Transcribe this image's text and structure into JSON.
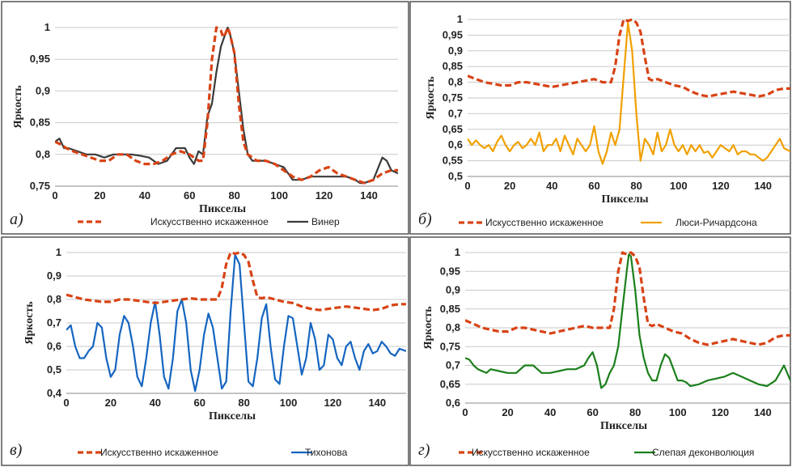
{
  "chart_data": [
    {
      "type": "line",
      "panel_label": "а)",
      "xlabel": "Пикселы",
      "ylabel": "Яркость",
      "xlim": [
        0,
        153
      ],
      "ylim": [
        0.75,
        1
      ],
      "xticks": [
        0,
        20,
        40,
        60,
        80,
        100,
        120,
        140
      ],
      "yticks": [
        "0,75",
        "0,8",
        "0,85",
        "0,9",
        "0,95",
        "1"
      ],
      "ytick_values": [
        0.75,
        0.8,
        0.85,
        0.9,
        0.95,
        1
      ],
      "legend_position": "bottom",
      "series": [
        {
          "name": "Искусственно искаженное",
          "color": "#d84315",
          "dashed": true,
          "x": [
            0,
            3,
            5,
            8,
            12,
            16,
            20,
            24,
            28,
            32,
            36,
            40,
            44,
            48,
            52,
            56,
            60,
            64,
            66,
            68,
            70,
            72,
            74,
            75,
            76,
            77,
            78,
            80,
            82,
            84,
            86,
            88,
            90,
            94,
            98,
            102,
            106,
            110,
            114,
            118,
            122,
            126,
            130,
            134,
            138,
            142,
            146,
            150,
            153
          ],
          "y": [
            0.82,
            0.815,
            0.81,
            0.805,
            0.8,
            0.795,
            0.79,
            0.79,
            0.8,
            0.8,
            0.79,
            0.785,
            0.785,
            0.79,
            0.8,
            0.805,
            0.8,
            0.79,
            0.79,
            0.85,
            0.95,
            1,
            0.995,
            0.985,
            0.99,
            1,
            0.99,
            0.96,
            0.88,
            0.82,
            0.8,
            0.795,
            0.79,
            0.79,
            0.785,
            0.775,
            0.765,
            0.76,
            0.765,
            0.775,
            0.78,
            0.77,
            0.765,
            0.76,
            0.755,
            0.76,
            0.77,
            0.775,
            0.775
          ]
        },
        {
          "name": "Винер",
          "color": "#3a3a3a",
          "dashed": false,
          "x": [
            0,
            2,
            4,
            6,
            10,
            14,
            18,
            22,
            26,
            30,
            34,
            38,
            42,
            46,
            50,
            54,
            58,
            60,
            62,
            64,
            66,
            68,
            70,
            72,
            74,
            76,
            77,
            78,
            80,
            82,
            84,
            86,
            88,
            90,
            94,
            98,
            102,
            104,
            106,
            110,
            114,
            118,
            122,
            126,
            130,
            134,
            136,
            138,
            142,
            146,
            148,
            150,
            153
          ],
          "y": [
            0.82,
            0.825,
            0.81,
            0.81,
            0.805,
            0.8,
            0.8,
            0.795,
            0.8,
            0.8,
            0.8,
            0.798,
            0.795,
            0.785,
            0.79,
            0.81,
            0.81,
            0.795,
            0.785,
            0.805,
            0.8,
            0.86,
            0.88,
            0.93,
            0.97,
            0.99,
            1,
            0.99,
            0.96,
            0.9,
            0.84,
            0.8,
            0.79,
            0.79,
            0.79,
            0.785,
            0.78,
            0.77,
            0.76,
            0.76,
            0.765,
            0.765,
            0.765,
            0.765,
            0.765,
            0.76,
            0.755,
            0.755,
            0.76,
            0.795,
            0.79,
            0.775,
            0.77
          ]
        }
      ]
    },
    {
      "type": "line",
      "panel_label": "б)",
      "xlabel": "Пикселы",
      "ylabel": "Яркость",
      "xlim": [
        0,
        153
      ],
      "ylim": [
        0.5,
        1
      ],
      "xticks": [
        0,
        20,
        40,
        60,
        80,
        100,
        120,
        140
      ],
      "yticks": [
        "0,5",
        "0,55",
        "0,6",
        "0,65",
        "0,7",
        "0,75",
        "0,8",
        "0,85",
        "0,9",
        "0,95",
        "1"
      ],
      "ytick_values": [
        0.5,
        0.55,
        0.6,
        0.65,
        0.7,
        0.75,
        0.8,
        0.85,
        0.9,
        0.95,
        1
      ],
      "legend_position": "bottom",
      "series": [
        {
          "name": "Искусственно искаженное",
          "color": "#d84315",
          "dashed": true,
          "x": [
            0,
            4,
            8,
            12,
            16,
            20,
            24,
            28,
            32,
            36,
            40,
            44,
            48,
            52,
            56,
            60,
            64,
            68,
            70,
            72,
            74,
            76,
            78,
            80,
            82,
            84,
            86,
            88,
            90,
            94,
            98,
            102,
            106,
            110,
            114,
            118,
            122,
            126,
            130,
            134,
            138,
            142,
            146,
            150,
            153
          ],
          "y": [
            0.82,
            0.81,
            0.8,
            0.795,
            0.79,
            0.79,
            0.8,
            0.8,
            0.795,
            0.79,
            0.785,
            0.79,
            0.795,
            0.8,
            0.805,
            0.81,
            0.8,
            0.8,
            0.85,
            0.95,
            1,
            0.995,
            1,
            0.99,
            0.96,
            0.88,
            0.81,
            0.805,
            0.81,
            0.8,
            0.79,
            0.785,
            0.77,
            0.76,
            0.755,
            0.76,
            0.765,
            0.77,
            0.765,
            0.76,
            0.755,
            0.76,
            0.775,
            0.78,
            0.78
          ]
        },
        {
          "name": "Люси-Ричардсона",
          "color": "#f0a000",
          "dashed": false,
          "x": [
            0,
            2,
            4,
            6,
            8,
            10,
            12,
            14,
            16,
            18,
            20,
            22,
            24,
            26,
            28,
            30,
            32,
            34,
            36,
            38,
            40,
            42,
            44,
            46,
            48,
            50,
            52,
            54,
            56,
            58,
            60,
            62,
            64,
            66,
            68,
            70,
            72,
            74,
            76,
            78,
            80,
            82,
            84,
            86,
            88,
            90,
            92,
            94,
            96,
            98,
            100,
            102,
            104,
            106,
            108,
            110,
            112,
            114,
            116,
            118,
            120,
            122,
            124,
            126,
            128,
            130,
            132,
            134,
            136,
            138,
            140,
            142,
            144,
            146,
            148,
            150,
            153
          ],
          "y": [
            0.62,
            0.6,
            0.615,
            0.6,
            0.59,
            0.6,
            0.58,
            0.61,
            0.63,
            0.6,
            0.58,
            0.6,
            0.61,
            0.59,
            0.6,
            0.62,
            0.6,
            0.64,
            0.58,
            0.6,
            0.6,
            0.62,
            0.58,
            0.63,
            0.6,
            0.57,
            0.62,
            0.6,
            0.58,
            0.6,
            0.66,
            0.58,
            0.54,
            0.58,
            0.64,
            0.6,
            0.65,
            0.82,
            0.99,
            0.9,
            0.7,
            0.55,
            0.62,
            0.6,
            0.57,
            0.64,
            0.58,
            0.6,
            0.65,
            0.6,
            0.58,
            0.6,
            0.57,
            0.6,
            0.58,
            0.6,
            0.575,
            0.58,
            0.56,
            0.58,
            0.6,
            0.59,
            0.58,
            0.6,
            0.57,
            0.58,
            0.58,
            0.57,
            0.57,
            0.56,
            0.55,
            0.56,
            0.58,
            0.6,
            0.62,
            0.59,
            0.58
          ]
        }
      ]
    },
    {
      "type": "line",
      "panel_label": "в)",
      "xlabel": "Пикселы",
      "ylabel": "Яркость",
      "xlim": [
        0,
        153
      ],
      "ylim": [
        0.4,
        1
      ],
      "xticks": [
        0,
        20,
        40,
        60,
        80,
        100,
        120,
        140
      ],
      "yticks": [
        "0,4",
        "0,5",
        "0,6",
        "0,7",
        "0,8",
        "0,9",
        "1"
      ],
      "ytick_values": [
        0.4,
        0.5,
        0.6,
        0.7,
        0.8,
        0.9,
        1
      ],
      "legend_position": "bottom",
      "series": [
        {
          "name": "Искусственно искаженное",
          "color": "#d84315",
          "dashed": true,
          "x": [
            0,
            4,
            8,
            12,
            16,
            20,
            24,
            28,
            32,
            36,
            40,
            44,
            48,
            52,
            56,
            60,
            64,
            68,
            70,
            72,
            74,
            76,
            78,
            80,
            82,
            84,
            86,
            88,
            90,
            94,
            98,
            102,
            106,
            110,
            114,
            118,
            122,
            126,
            130,
            134,
            138,
            142,
            146,
            150,
            153
          ],
          "y": [
            0.82,
            0.81,
            0.8,
            0.795,
            0.79,
            0.79,
            0.8,
            0.8,
            0.795,
            0.79,
            0.785,
            0.79,
            0.795,
            0.8,
            0.805,
            0.8,
            0.8,
            0.8,
            0.85,
            0.95,
            1,
            0.995,
            1,
            0.99,
            0.96,
            0.88,
            0.81,
            0.805,
            0.81,
            0.8,
            0.79,
            0.785,
            0.77,
            0.76,
            0.755,
            0.76,
            0.765,
            0.77,
            0.765,
            0.76,
            0.755,
            0.76,
            0.775,
            0.78,
            0.78
          ]
        },
        {
          "name": "Тихонова",
          "color": "#1565c0",
          "dashed": false,
          "x": [
            0,
            2,
            4,
            6,
            8,
            10,
            12,
            14,
            16,
            18,
            20,
            22,
            24,
            26,
            28,
            30,
            32,
            34,
            36,
            38,
            40,
            42,
            44,
            46,
            48,
            50,
            52,
            54,
            56,
            58,
            60,
            62,
            64,
            66,
            68,
            70,
            72,
            74,
            76,
            78,
            80,
            82,
            84,
            86,
            88,
            90,
            92,
            94,
            96,
            98,
            100,
            102,
            104,
            106,
            108,
            110,
            112,
            114,
            116,
            118,
            120,
            122,
            124,
            126,
            128,
            130,
            132,
            134,
            136,
            138,
            140,
            142,
            144,
            146,
            148,
            150,
            153
          ],
          "y": [
            0.67,
            0.69,
            0.6,
            0.55,
            0.55,
            0.58,
            0.6,
            0.7,
            0.68,
            0.55,
            0.47,
            0.5,
            0.65,
            0.73,
            0.7,
            0.6,
            0.47,
            0.43,
            0.55,
            0.7,
            0.79,
            0.65,
            0.47,
            0.42,
            0.55,
            0.75,
            0.8,
            0.7,
            0.5,
            0.41,
            0.5,
            0.65,
            0.74,
            0.68,
            0.55,
            0.42,
            0.45,
            0.75,
            0.99,
            0.95,
            0.7,
            0.45,
            0.43,
            0.55,
            0.72,
            0.78,
            0.6,
            0.46,
            0.44,
            0.6,
            0.73,
            0.72,
            0.6,
            0.48,
            0.55,
            0.7,
            0.63,
            0.5,
            0.52,
            0.65,
            0.63,
            0.55,
            0.52,
            0.6,
            0.62,
            0.55,
            0.5,
            0.58,
            0.61,
            0.57,
            0.58,
            0.62,
            0.6,
            0.57,
            0.56,
            0.59,
            0.58
          ]
        }
      ]
    },
    {
      "type": "line",
      "panel_label": "г)",
      "xlabel": "Пикселы",
      "ylabel": "Яркость",
      "xlim": [
        0,
        153
      ],
      "ylim": [
        0.6,
        1
      ],
      "xticks": [
        0,
        20,
        40,
        60,
        80,
        100,
        120,
        140
      ],
      "yticks": [
        "0,6",
        "0,65",
        "0,7",
        "0,75",
        "0,8",
        "0,85",
        "0,9",
        "0,95",
        "1"
      ],
      "ytick_values": [
        0.6,
        0.65,
        0.7,
        0.75,
        0.8,
        0.85,
        0.9,
        0.95,
        1
      ],
      "legend_position": "bottom",
      "series": [
        {
          "name": "Искусственно искаженное",
          "color": "#d84315",
          "dashed": true,
          "x": [
            0,
            4,
            8,
            12,
            16,
            20,
            24,
            28,
            32,
            36,
            40,
            44,
            48,
            52,
            56,
            60,
            64,
            68,
            70,
            72,
            74,
            76,
            78,
            80,
            82,
            84,
            86,
            88,
            90,
            94,
            98,
            102,
            106,
            110,
            114,
            118,
            122,
            126,
            130,
            134,
            138,
            142,
            146,
            150,
            153
          ],
          "y": [
            0.82,
            0.81,
            0.8,
            0.795,
            0.79,
            0.79,
            0.8,
            0.8,
            0.795,
            0.79,
            0.785,
            0.79,
            0.795,
            0.8,
            0.805,
            0.8,
            0.8,
            0.8,
            0.85,
            0.95,
            1,
            0.995,
            1,
            0.99,
            0.96,
            0.88,
            0.81,
            0.805,
            0.81,
            0.8,
            0.79,
            0.785,
            0.77,
            0.76,
            0.755,
            0.76,
            0.765,
            0.77,
            0.765,
            0.76,
            0.755,
            0.76,
            0.775,
            0.78,
            0.78
          ]
        },
        {
          "name": "Слепая деконволюция",
          "color": "#1b7f1b",
          "dashed": false,
          "x": [
            0,
            2,
            4,
            6,
            8,
            10,
            12,
            16,
            20,
            24,
            28,
            32,
            36,
            40,
            44,
            48,
            52,
            56,
            58,
            60,
            62,
            64,
            66,
            68,
            70,
            72,
            74,
            76,
            77,
            78,
            80,
            82,
            84,
            86,
            88,
            90,
            92,
            94,
            96,
            98,
            100,
            102,
            104,
            106,
            110,
            114,
            118,
            122,
            126,
            130,
            134,
            138,
            142,
            146,
            148,
            150,
            153
          ],
          "y": [
            0.72,
            0.715,
            0.7,
            0.69,
            0.685,
            0.68,
            0.69,
            0.685,
            0.68,
            0.68,
            0.7,
            0.7,
            0.68,
            0.68,
            0.685,
            0.69,
            0.69,
            0.7,
            0.72,
            0.735,
            0.7,
            0.64,
            0.65,
            0.68,
            0.7,
            0.75,
            0.85,
            0.95,
            0.995,
            0.99,
            0.9,
            0.78,
            0.72,
            0.68,
            0.66,
            0.66,
            0.7,
            0.73,
            0.72,
            0.69,
            0.66,
            0.66,
            0.655,
            0.645,
            0.65,
            0.66,
            0.665,
            0.67,
            0.68,
            0.67,
            0.66,
            0.65,
            0.645,
            0.66,
            0.68,
            0.7,
            0.66
          ]
        }
      ]
    }
  ]
}
